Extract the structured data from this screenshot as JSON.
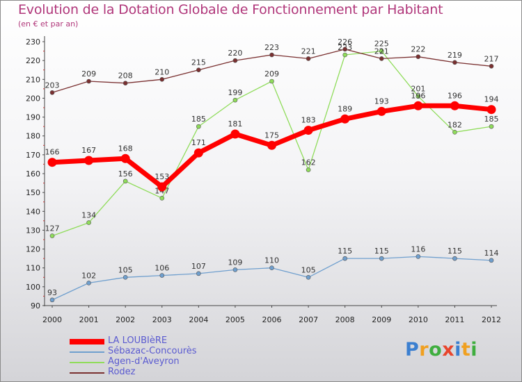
{
  "title": "Evolution de la Dotation Globale de Fonctionnement par Habitant",
  "subtitle": "(en € et par an)",
  "logo": {
    "text": "Proxiti",
    "colors": [
      "#3b7fd0",
      "#f0a020",
      "#3fae3f",
      "#e8452c",
      "#3b7fd0",
      "#f0a020",
      "#3fae3f"
    ]
  },
  "chart_data": {
    "type": "line",
    "title": "Evolution de la Dotation Globale de Fonctionnement par Habitant",
    "subtitle": "(en € et par an)",
    "xlabel": "",
    "ylabel": "",
    "categories": [
      "2000",
      "2001",
      "2002",
      "2003",
      "2004",
      "2005",
      "2006",
      "2007",
      "2008",
      "2009",
      "2010",
      "2011",
      "2012"
    ],
    "ylim": [
      90,
      230
    ],
    "yticks": [
      90,
      100,
      110,
      120,
      130,
      140,
      150,
      160,
      170,
      180,
      190,
      200,
      210,
      220,
      230
    ],
    "grid": false,
    "legend_position": "bottom-left",
    "series": [
      {
        "name": "LA LOUBIèRE",
        "color": "#ff0000",
        "emphasis": true,
        "values": [
          166,
          167,
          168,
          153,
          171,
          181,
          175,
          183,
          189,
          193,
          196,
          196,
          194
        ]
      },
      {
        "name": "Sébazac-Concourès",
        "color": "#6f9fce",
        "emphasis": false,
        "values": [
          93,
          102,
          105,
          106,
          107,
          109,
          110,
          105,
          115,
          115,
          116,
          115,
          114
        ]
      },
      {
        "name": "Agen-d'Aveyron",
        "color": "#8fdc5a",
        "emphasis": false,
        "values": [
          127,
          134,
          156,
          147,
          185,
          199,
          209,
          162,
          223,
          225,
          201,
          182,
          185
        ]
      },
      {
        "name": "Rodez",
        "color": "#7a3030",
        "emphasis": false,
        "values": [
          203,
          209,
          208,
          210,
          215,
          220,
          223,
          221,
          226,
          221,
          222,
          219,
          217
        ]
      }
    ]
  }
}
